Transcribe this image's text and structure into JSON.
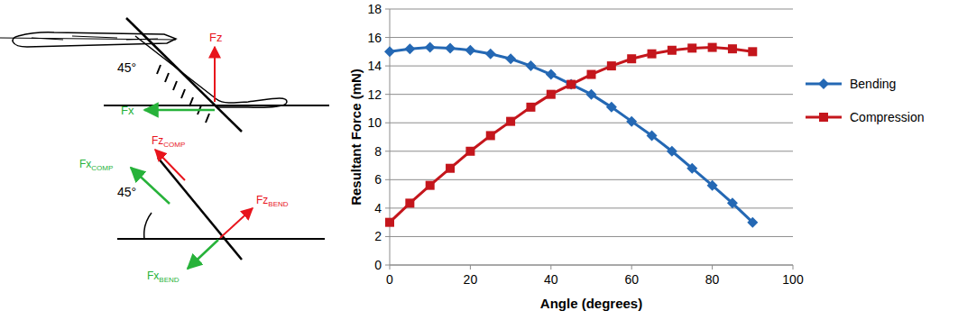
{
  "chart_data": {
    "type": "line",
    "x_label": "Angle (degrees)",
    "y_label": "Resultant Force (mN)",
    "x": [
      0,
      5,
      10,
      15,
      20,
      25,
      30,
      35,
      40,
      45,
      50,
      55,
      60,
      65,
      70,
      75,
      80,
      85,
      90
    ],
    "series": [
      {
        "name": "Bending",
        "color": "#2468b4",
        "marker": "diamond",
        "line_style": "solid",
        "values": [
          15.0,
          15.2,
          15.3,
          15.25,
          15.1,
          14.85,
          14.5,
          14.0,
          13.4,
          12.7,
          12.0,
          11.1,
          10.1,
          9.1,
          8.0,
          6.8,
          5.6,
          4.35,
          3.0
        ]
      },
      {
        "name": "Compression",
        "color": "#c4161c",
        "marker": "square",
        "line_style": "solid",
        "values": [
          3.0,
          4.35,
          5.6,
          6.8,
          8.0,
          9.1,
          10.1,
          11.1,
          12.0,
          12.7,
          13.4,
          14.0,
          14.5,
          14.85,
          15.1,
          15.25,
          15.3,
          15.2,
          15.0
        ]
      }
    ],
    "xlim": [
      0,
      100
    ],
    "xticks": [
      0,
      20,
      40,
      60,
      80,
      100
    ],
    "ylim": [
      0,
      18
    ],
    "yticks": [
      0,
      2,
      4,
      6,
      8,
      10,
      12,
      14,
      16,
      18
    ],
    "grid": true,
    "legend": "right"
  },
  "diagram": {
    "labels": [
      {
        "text": "Fz"
      },
      {
        "text": "Fx"
      },
      {
        "text": "45°"
      },
      {
        "text": "Fz",
        "sub": "COMP"
      },
      {
        "text": "Fx",
        "sub": "COMP"
      },
      {
        "text": "45°"
      },
      {
        "text": "Fz",
        "sub": "BEND"
      },
      {
        "text": "Fx",
        "sub": "BEND"
      }
    ]
  }
}
